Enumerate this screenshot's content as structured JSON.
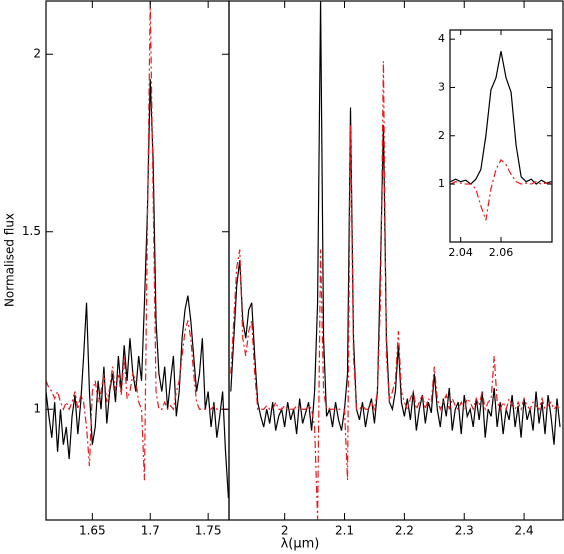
{
  "chart_data": [
    {
      "type": "line",
      "ylabel": "Normalised flux",
      "xlabel": "λ(μm)",
      "xlim": [
        1.61,
        1.768
      ],
      "ylim": [
        0.688,
        2.15
      ],
      "xticks": [
        1.65,
        1.7,
        1.75
      ],
      "yticks": [
        1,
        1.5,
        2
      ],
      "x": [
        1.61,
        1.6125,
        1.615,
        1.6175,
        1.62,
        1.6225,
        1.625,
        1.6275,
        1.63,
        1.6325,
        1.635,
        1.6375,
        1.64,
        1.6425,
        1.645,
        1.6475,
        1.65,
        1.6525,
        1.655,
        1.6575,
        1.66,
        1.6625,
        1.665,
        1.6675,
        1.67,
        1.6725,
        1.675,
        1.6775,
        1.68,
        1.6825,
        1.685,
        1.6875,
        1.69,
        1.6925,
        1.695,
        1.6975,
        1.7,
        1.7025,
        1.705,
        1.7075,
        1.71,
        1.7125,
        1.715,
        1.7175,
        1.72,
        1.7225,
        1.725,
        1.7275,
        1.73,
        1.7325,
        1.735,
        1.7375,
        1.74,
        1.7425,
        1.745,
        1.7475,
        1.75,
        1.7525,
        1.755,
        1.7575,
        1.76,
        1.7625,
        1.765,
        1.7675
      ],
      "series": [
        {
          "color": "#000000",
          "dash": "none",
          "values": [
            1.05,
            0.98,
            0.92,
            1.02,
            0.88,
            1.0,
            0.9,
            0.95,
            0.86,
            0.98,
            1.04,
            0.93,
            1.02,
            1.15,
            1.3,
            1.05,
            0.9,
            0.95,
            1.08,
            1.0,
            1.12,
            0.96,
            1.05,
            1.1,
            1.02,
            1.15,
            1.05,
            1.18,
            1.08,
            1.2,
            1.1,
            1.05,
            1.15,
            1.08,
            1.3,
            1.55,
            1.93,
            1.7,
            1.25,
            1.1,
            1.05,
            1.12,
            1.0,
            1.08,
            1.15,
            0.98,
            1.05,
            1.2,
            1.28,
            1.32,
            1.25,
            1.15,
            1.05,
            1.1,
            1.2,
            1.0,
            1.05,
            0.95,
            1.02,
            0.92,
            0.98,
            1.05,
            0.88,
            0.75
          ]
        },
        {
          "color": "#e8191c",
          "dash": "7 3 2 3",
          "values": [
            1.08,
            1.06,
            1.05,
            1.03,
            1.05,
            1.02,
            1.0,
            1.02,
            1.0,
            1.02,
            1.05,
            1.0,
            1.04,
            1.02,
            0.95,
            0.84,
            1.05,
            1.08,
            1.02,
            1.05,
            1.1,
            1.02,
            1.06,
            1.12,
            1.05,
            1.1,
            1.04,
            1.15,
            1.03,
            1.05,
            1.1,
            1.08,
            1.02,
            1.0,
            0.8,
            1.5,
            2.15,
            1.6,
            1.05,
            1.0,
            1.0,
            1.02,
            1.0,
            1.01,
            1.0,
            1.05,
            1.08,
            1.15,
            1.22,
            1.25,
            1.2,
            1.1,
            1.02,
            1.0,
            1.0,
            1.0,
            1.0,
            1.0,
            1.01,
            1.0,
            1.0,
            1.0,
            1.0,
            1.0
          ]
        }
      ]
    },
    {
      "type": "line",
      "xlim": [
        1.907,
        2.465
      ],
      "ylim": [
        0.688,
        2.15
      ],
      "xticks": [
        2,
        2.1,
        2.2,
        2.3,
        2.4
      ],
      "x": [
        1.91,
        1.915,
        1.92,
        1.925,
        1.93,
        1.935,
        1.94,
        1.945,
        1.95,
        1.955,
        1.96,
        1.965,
        1.97,
        1.975,
        1.98,
        1.985,
        1.99,
        1.995,
        2.0,
        2.005,
        2.01,
        2.015,
        2.02,
        2.025,
        2.03,
        2.035,
        2.04,
        2.045,
        2.05,
        2.055,
        2.06,
        2.065,
        2.07,
        2.075,
        2.08,
        2.085,
        2.09,
        2.095,
        2.1,
        2.105,
        2.11,
        2.115,
        2.12,
        2.125,
        2.13,
        2.135,
        2.14,
        2.145,
        2.15,
        2.155,
        2.16,
        2.165,
        2.17,
        2.175,
        2.18,
        2.185,
        2.19,
        2.195,
        2.2,
        2.205,
        2.21,
        2.215,
        2.22,
        2.225,
        2.23,
        2.235,
        2.24,
        2.245,
        2.25,
        2.255,
        2.26,
        2.265,
        2.27,
        2.275,
        2.28,
        2.285,
        2.29,
        2.295,
        2.3,
        2.305,
        2.31,
        2.315,
        2.32,
        2.325,
        2.33,
        2.335,
        2.34,
        2.345,
        2.35,
        2.355,
        2.36,
        2.365,
        2.37,
        2.375,
        2.38,
        2.385,
        2.39,
        2.395,
        2.4,
        2.405,
        2.41,
        2.415,
        2.42,
        2.425,
        2.43,
        2.435,
        2.44,
        2.445,
        2.45,
        2.455,
        2.46
      ],
      "series": [
        {
          "color": "#000000",
          "dash": "none",
          "values": [
            1.05,
            1.2,
            1.35,
            1.42,
            1.25,
            1.2,
            1.28,
            1.3,
            1.15,
            1.02,
            0.98,
            0.95,
            1.0,
            0.96,
            1.02,
            0.94,
            0.98,
            1.0,
            0.95,
            1.02,
            0.97,
            1.0,
            0.93,
            1.03,
            0.96,
            0.99,
            1.02,
            0.94,
            1.05,
            1.3,
            2.15,
            1.2,
            0.98,
            1.0,
            0.95,
            1.02,
            0.97,
            0.94,
            1.0,
            1.1,
            1.85,
            1.2,
            1.0,
            0.97,
            1.02,
            0.95,
            1.0,
            1.03,
            0.96,
            1.05,
            1.4,
            1.8,
            1.2,
            1.02,
            1.0,
            1.05,
            1.18,
            1.02,
            0.98,
            1.03,
            0.97,
            1.05,
            0.94,
            1.0,
            1.04,
            0.96,
            1.02,
            0.99,
            1.1,
            1.0,
            0.95,
            1.03,
            0.98,
            1.06,
            0.94,
            1.0,
            1.02,
            0.93,
            1.04,
            0.98,
            1.0,
            0.95,
            1.03,
            0.97,
            1.05,
            0.92,
            1.0,
            0.98,
            1.06,
            0.95,
            1.02,
            0.93,
            1.0,
            0.97,
            1.04,
            0.95,
            1.01,
            0.92,
            1.03,
            0.97,
            1.0,
            0.94,
            1.05,
            0.96,
            1.02,
            0.93,
            1.04,
            0.98,
            0.9,
            1.03,
            0.95
          ]
        },
        {
          "color": "#e8191c",
          "dash": "7 3 2 3",
          "values": [
            1.1,
            1.25,
            1.4,
            1.45,
            1.2,
            1.15,
            1.22,
            1.25,
            1.1,
            1.0,
            1.0,
            1.0,
            1.01,
            1.0,
            1.0,
            1.02,
            1.0,
            1.0,
            1.01,
            1.0,
            1.0,
            1.0,
            1.01,
            1.0,
            1.0,
            1.0,
            1.01,
            1.0,
            0.95,
            0.69,
            1.45,
            1.05,
            1.0,
            1.0,
            1.0,
            1.0,
            1.0,
            1.0,
            1.0,
            0.8,
            1.8,
            1.15,
            1.0,
            1.0,
            1.01,
            1.0,
            1.0,
            1.02,
            1.0,
            1.05,
            1.3,
            1.98,
            1.15,
            1.02,
            1.05,
            1.08,
            1.22,
            1.05,
            1.02,
            1.0,
            1.03,
            1.05,
            1.0,
            1.02,
            1.04,
            1.0,
            1.03,
            1.02,
            1.12,
            1.03,
            1.0,
            1.02,
            1.04,
            1.0,
            1.03,
            1.01,
            1.0,
            1.02,
            1.0,
            1.03,
            1.02,
            1.0,
            1.03,
            1.01,
            1.05,
            1.0,
            1.02,
            1.03,
            1.15,
            1.02,
            1.0,
            1.02,
            1.0,
            1.03,
            1.01,
            1.0,
            1.02,
            1.0,
            1.03,
            1.01,
            1.0,
            1.02,
            1.01,
            1.0,
            1.03,
            1.0,
            1.01,
            1.02,
            1.0,
            1.01,
            1.0
          ]
        }
      ]
    },
    {
      "type": "line",
      "xlim": [
        2.0347,
        2.0853
      ],
      "ylim": [
        -0.2,
        4.19
      ],
      "xticks": [
        2.04,
        2.06
      ],
      "yticks": [
        1,
        2,
        3,
        4
      ],
      "x": [
        2.035,
        2.0375,
        2.04,
        2.0425,
        2.045,
        2.0475,
        2.05,
        2.0525,
        2.055,
        2.0575,
        2.06,
        2.0625,
        2.065,
        2.0675,
        2.07,
        2.0725,
        2.075,
        2.0775,
        2.08,
        2.0825,
        2.085
      ],
      "series": [
        {
          "color": "#000000",
          "dash": "none",
          "values": [
            1.05,
            1.1,
            1.05,
            1.08,
            1.0,
            1.1,
            1.3,
            2.0,
            2.95,
            3.2,
            3.75,
            3.2,
            2.9,
            1.8,
            1.15,
            1.05,
            1.1,
            1.0,
            1.08,
            1.02,
            1.05
          ]
        },
        {
          "color": "#e8191c",
          "dash": "7 3 2 3",
          "values": [
            1.0,
            1.05,
            1.02,
            1.0,
            1.0,
            0.9,
            0.55,
            0.25,
            0.9,
            1.3,
            1.5,
            1.4,
            1.2,
            1.05,
            1.0,
            1.02,
            1.0,
            1.05,
            1.0,
            1.02,
            1.0
          ]
        }
      ]
    }
  ]
}
